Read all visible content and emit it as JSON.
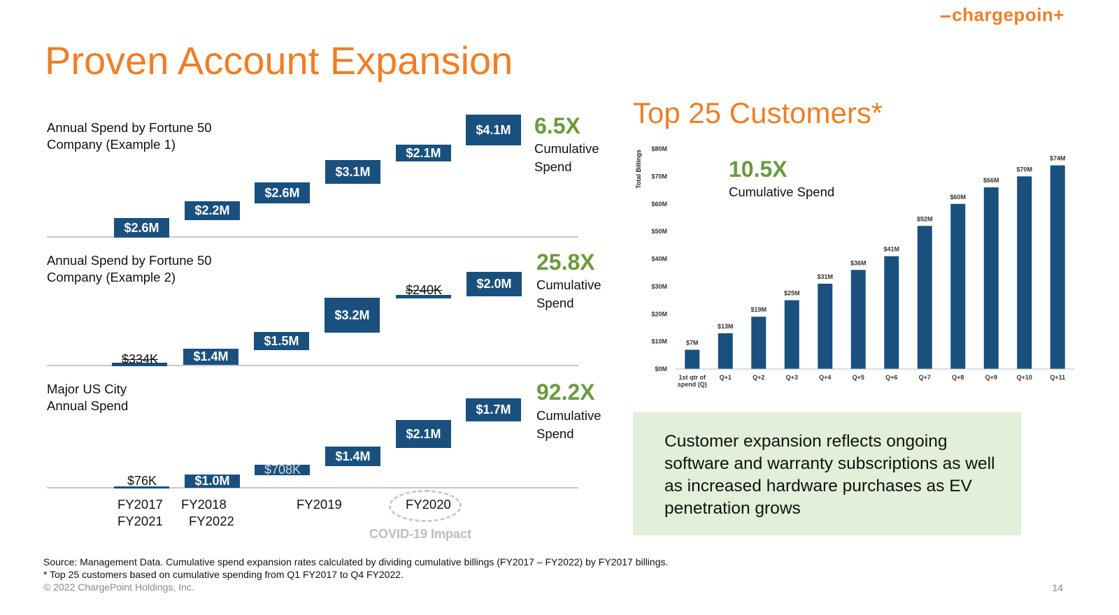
{
  "logo": "chargepoin+",
  "title": "Proven Account Expansion",
  "waterfall_panels": [
    {
      "label_line1": "Annual Spend by Fortune 50",
      "label_line2": "Company (Example 1)",
      "multiplier": "6.5X",
      "multiplier_sub_line1": "Cumulative",
      "multiplier_sub_line2": "Spend",
      "steps": [
        "$2.6M",
        "$2.2M",
        "$2.6M",
        "$3.1M",
        "$2.1M",
        "$4.1M"
      ]
    },
    {
      "label_line1": "Annual Spend by Fortune 50",
      "label_line2": "Company (Example 2)",
      "multiplier": "25.8X",
      "multiplier_sub_line1": "Cumulative",
      "multiplier_sub_line2": "Spend",
      "steps": [
        "$334K",
        "$1.4M",
        "$1.5M",
        "$3.2M",
        "$240K",
        "$2.0M"
      ]
    },
    {
      "label_line1": "Major US City",
      "label_line2": "Annual Spend",
      "multiplier": "92.2X",
      "multiplier_sub_line1": "Cumulative",
      "multiplier_sub_line2": "Spend",
      "steps": [
        "$76K",
        "$1.0M",
        "$708K",
        "$1.4M",
        "$2.1M",
        "$1.7M"
      ]
    }
  ],
  "fiscal_years": {
    "fy2017": "FY2017",
    "fy2018": "FY2018",
    "fy2019": "FY2019",
    "fy2020": "FY2020",
    "fy2021": "FY2021",
    "fy2022": "FY2022"
  },
  "covid_label": "COVID-19 Impact",
  "right_title": "Top 25 Customers*",
  "right_multiplier": "10.5X",
  "right_multiplier_sub": "Cumulative Spend",
  "callout": "Customer expansion reflects ongoing software and warranty subscriptions as well as increased hardware purchases as EV penetration grows",
  "footnotes": {
    "source": "Source: Management Data. Cumulative spend expansion rates calculated by dividing cumulative billings (FY2017 – FY2022) by FY2017 billings.",
    "asterisk": "* Top 25 customers based on cumulative spending from Q1 FY2017 to Q4 FY2022."
  },
  "copyright": "© 2022 ChargePoint Holdings, Inc.",
  "page_number": "14",
  "colors": {
    "orange": "#f07e26",
    "navy": "#19507e",
    "green": "#6a9b3c",
    "callout_bg": "#e2efd9"
  },
  "chart_data": {
    "type": "bar",
    "ylabel": "Total Billings",
    "categories": [
      "1st qtr of spend (Q)",
      "Q+1",
      "Q+2",
      "Q+3",
      "Q+4",
      "Q+5",
      "Q+6",
      "Q+7",
      "Q+8",
      "Q+9",
      "Q+10",
      "Q+11"
    ],
    "values": [
      7,
      13,
      19,
      25,
      31,
      36,
      41,
      52,
      60,
      66,
      70,
      74
    ],
    "value_labels": [
      "$7M",
      "$13M",
      "$19M",
      "$25M",
      "$31M",
      "$36M",
      "$41M",
      "$52M",
      "$60M",
      "$66M",
      "$70M",
      "$74M"
    ],
    "yticks": [
      "$0M",
      "$10M",
      "$20M",
      "$30M",
      "$40M",
      "$50M",
      "$60M",
      "$70M",
      "$80M"
    ],
    "ylim": [
      0,
      80
    ],
    "grid": false,
    "bar_color": "#19507e"
  }
}
